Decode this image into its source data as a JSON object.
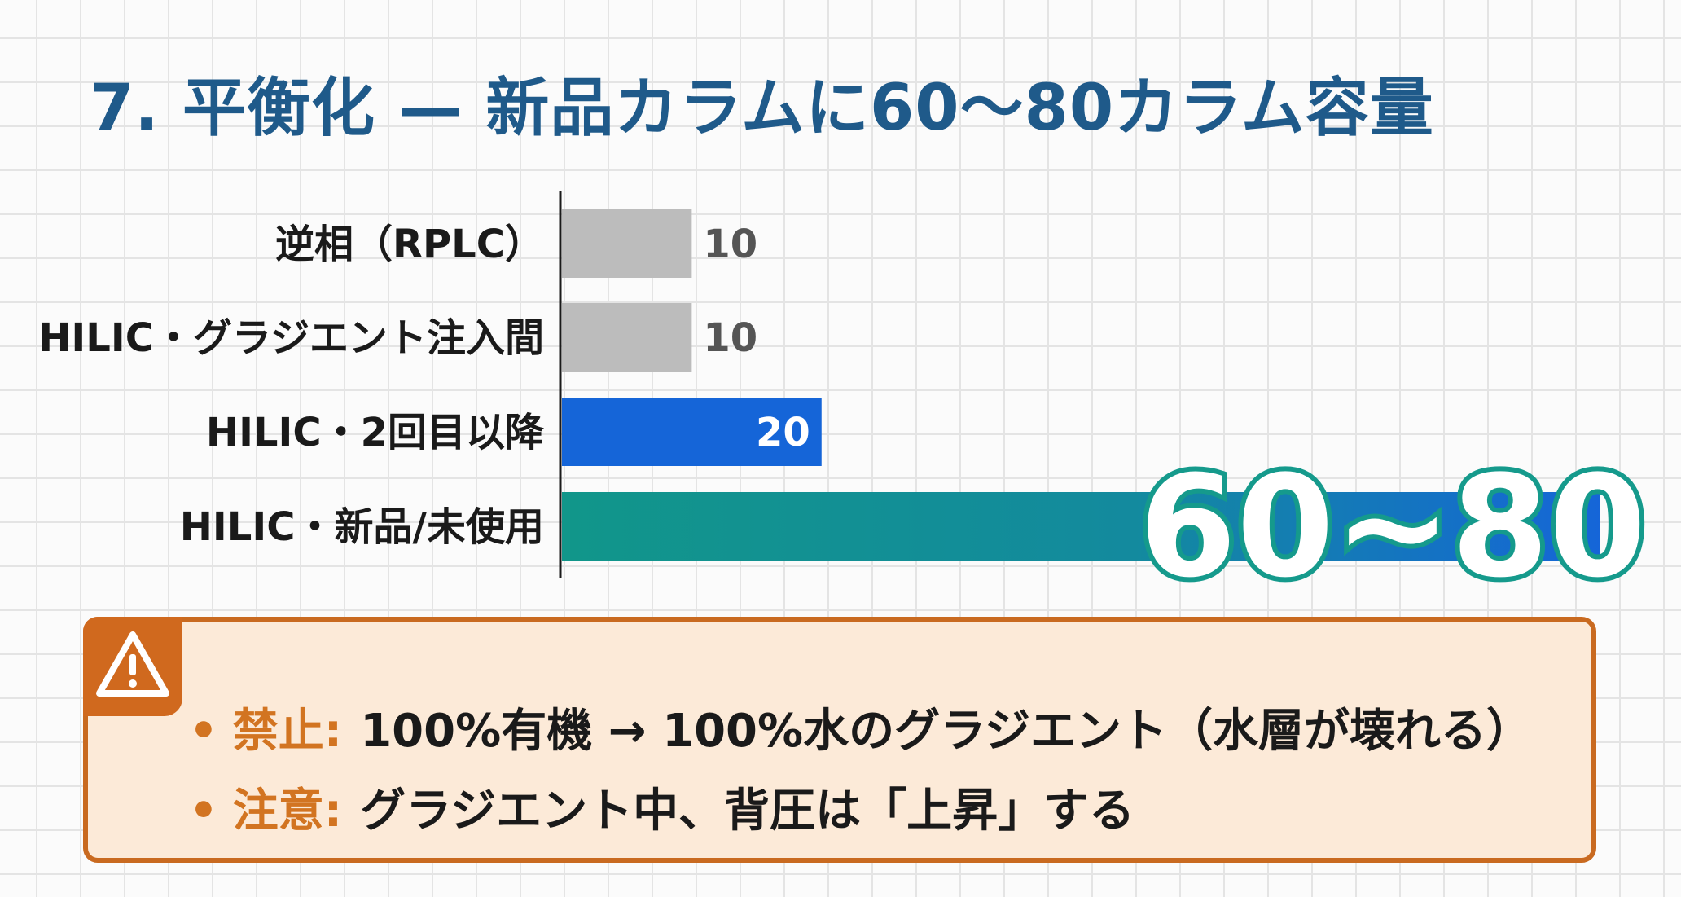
{
  "title": "7. 平衡化 — 新品カラムに60〜80カラム容量",
  "chart_data": {
    "type": "bar",
    "orientation": "horizontal",
    "categories": [
      "逆相（RPLC）",
      "HILIC・グラジエント注入間",
      "HILIC・2回目以降",
      "HILIC・新品/未使用"
    ],
    "values": [
      10,
      10,
      20,
      80
    ],
    "value_labels": [
      "10",
      "10",
      "20",
      "60~80"
    ],
    "bar_colors": [
      "#bcbcbc",
      "#bcbcbc",
      "#1565d8",
      "gradient:#11968a-#1565d8"
    ],
    "value_label_colors": [
      "#555555",
      "#555555",
      "#ffffff",
      "#ffffff"
    ],
    "xlim": [
      0,
      80
    ],
    "grid": false,
    "legend": "none"
  },
  "warning": {
    "icon": "warning-icon",
    "items": [
      {
        "bullet": "•",
        "key": "禁止:",
        "text": "100%有機 → 100%水のグラジエント（水層が壊れる）"
      },
      {
        "bullet": "•",
        "key": "注意:",
        "text": "グラジエント中、背圧は「上昇」する"
      }
    ]
  }
}
